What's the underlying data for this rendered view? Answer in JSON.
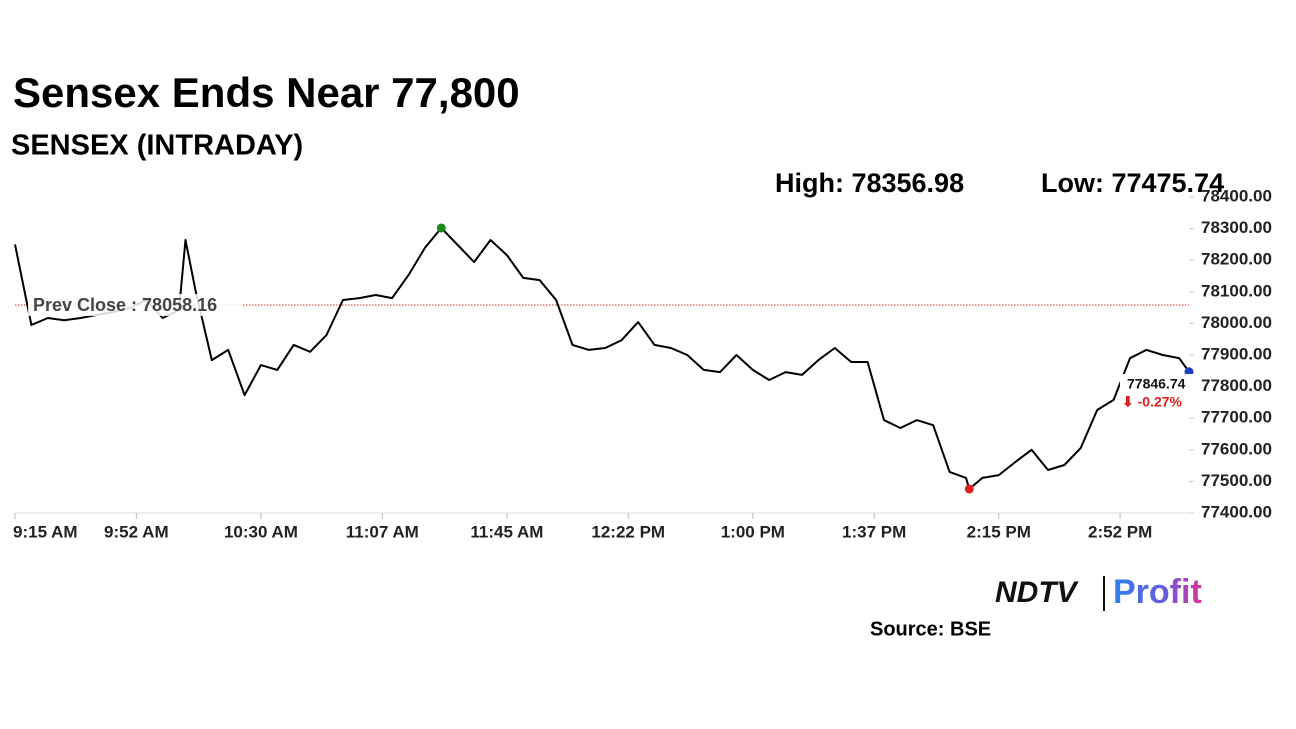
{
  "chart_data": {
    "type": "line",
    "title": "Sensex Ends Near 77,800",
    "subtitle": "SENSEX (INTRADAY)",
    "high_label": "High: 78356.98",
    "low_label": "Low: 77475.74",
    "prev_close": 78058.16,
    "prev_close_label": "Prev Close : 78058.16",
    "last_label": "77846.74",
    "change_label": "⬇ -0.27%",
    "source": "Source: BSE",
    "brand": [
      "NDTV",
      "Profit"
    ],
    "color": "#000000",
    "x": [
      "9:15 AM",
      "9:20 AM",
      "9:25 AM",
      "9:30 AM",
      "9:35 AM",
      "9:40 AM",
      "9:45 AM",
      "9:50 AM",
      "9:55 AM",
      "10:00 AM",
      "10:05 AM",
      "10:07 AM",
      "10:10 AM",
      "10:15 AM",
      "10:20 AM",
      "10:25 AM",
      "10:30 AM",
      "10:35 AM",
      "10:40 AM",
      "10:45 AM",
      "10:50 AM",
      "10:55 AM",
      "11:00 AM",
      "11:05 AM",
      "11:10 AM",
      "11:15 AM",
      "11:20 AM",
      "11:25 AM",
      "11:30 AM",
      "11:35 AM",
      "11:40 AM",
      "11:45 AM",
      "11:50 AM",
      "11:55 AM",
      "12:00 PM",
      "12:05 PM",
      "12:10 PM",
      "12:15 PM",
      "12:20 PM",
      "12:25 PM",
      "12:30 PM",
      "12:35 PM",
      "12:40 PM",
      "12:45 PM",
      "12:50 PM",
      "12:55 PM",
      "1:00 PM",
      "1:05 PM",
      "1:10 PM",
      "1:15 PM",
      "1:20 PM",
      "1:25 PM",
      "1:30 PM",
      "1:35 PM",
      "1:40 PM",
      "1:45 PM",
      "1:50 PM",
      "1:55 PM",
      "2:00 PM",
      "2:05 PM",
      "2:06 PM",
      "2:10 PM",
      "2:15 PM",
      "2:20 PM",
      "2:25 PM",
      "2:30 PM",
      "2:35 PM",
      "2:40 PM",
      "2:45 PM",
      "2:50 PM",
      "2:55 PM",
      "3:00 PM",
      "3:05 PM",
      "3:10 PM",
      "3:13 PM"
    ],
    "values": [
      78250,
      77995,
      78017,
      78010,
      78017,
      78027,
      78036,
      78049,
      78074,
      78017,
      78042,
      78264,
      78106,
      77884,
      77916,
      77773,
      77868,
      77853,
      77932,
      77910,
      77963,
      78074,
      78080,
      78090,
      78080,
      78153,
      78239,
      78302,
      78248,
      78194,
      78264,
      78216,
      78144,
      78137,
      78074,
      77932,
      77916,
      77922,
      77947,
      78004,
      77932,
      77922,
      77900,
      77853,
      77846,
      77900,
      77853,
      77821,
      77846,
      77837,
      77884,
      77922,
      77878,
      77878,
      77694,
      77669,
      77694,
      77678,
      77530,
      77511,
      77476,
      77511,
      77520,
      77561,
      77600,
      77536,
      77552,
      77606,
      77726,
      77758,
      77890,
      77916,
      77900,
      77890,
      77847
    ],
    "ylim": [
      77400,
      78400
    ],
    "yticks": [
      {
        "value": 77400,
        "label": "77400.00"
      },
      {
        "value": 77500,
        "label": "77500.00"
      },
      {
        "value": 77600,
        "label": "77600.00"
      },
      {
        "value": 77700,
        "label": "77700.00"
      },
      {
        "value": 77800,
        "label": "77800.00"
      },
      {
        "value": 77900,
        "label": "77900.00"
      },
      {
        "value": 78000,
        "label": "78000.00"
      },
      {
        "value": 78100,
        "label": "78100.00"
      },
      {
        "value": 78200,
        "label": "78200.00"
      },
      {
        "value": 78300,
        "label": "78300.00"
      },
      {
        "value": 78400,
        "label": "78400.00"
      }
    ],
    "xticks": [
      "9:15 AM",
      "9:52 AM",
      "10:30 AM",
      "11:07 AM",
      "11:45 AM",
      "12:22 PM",
      "1:00 PM",
      "1:37 PM",
      "2:15 PM",
      "2:52 PM"
    ]
  }
}
